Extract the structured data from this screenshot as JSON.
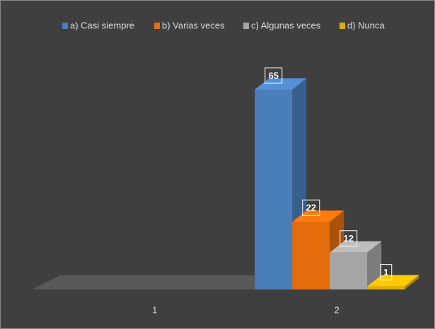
{
  "chart_data": {
    "type": "bar3d",
    "categories": [
      "1",
      "2"
    ],
    "series": [
      {
        "name": "a) Casi siempre",
        "color": "#4a7ebb",
        "values": [
          null,
          65
        ]
      },
      {
        "name": "b) Varias veces",
        "color": "#e46c0a",
        "values": [
          null,
          22
        ]
      },
      {
        "name": "c) Algunas veces",
        "color": "#a5a5a5",
        "values": [
          null,
          12
        ]
      },
      {
        "name": "d) Nunca",
        "color": "#e0b000",
        "values": [
          null,
          1
        ]
      }
    ],
    "legend": "top"
  }
}
